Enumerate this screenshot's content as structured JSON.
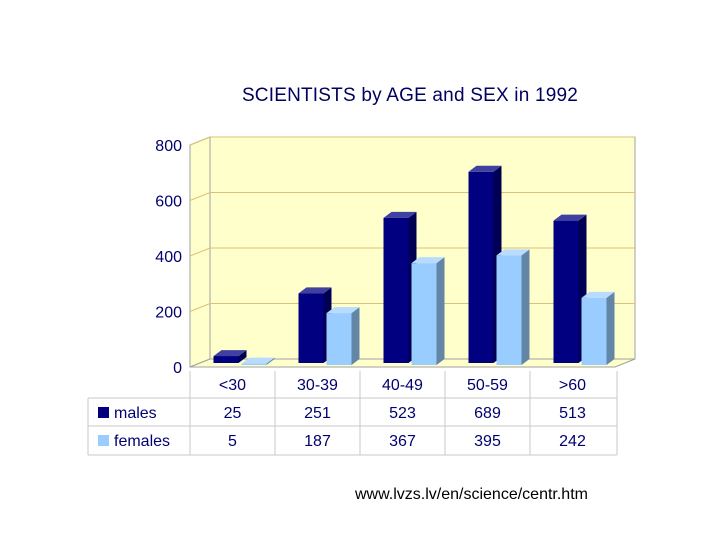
{
  "chart_data": {
    "type": "bar",
    "title": "SCIENTISTS by AGE and SEX in 1992",
    "xlabel": "",
    "ylabel": "",
    "ylim": [
      0,
      800
    ],
    "yticks": [
      "0",
      "200",
      "400",
      "600",
      "800"
    ],
    "categories": [
      "<30",
      "30-39",
      "40-49",
      "50-59",
      ">60"
    ],
    "series": [
      {
        "name": "males",
        "values": [
          25,
          251,
          523,
          689,
          513
        ],
        "color": "#000080"
      },
      {
        "name": "females",
        "values": [
          5,
          187,
          367,
          395,
          242
        ],
        "color": "#99ccff"
      }
    ],
    "data_table": true,
    "grid": true,
    "three_d": true,
    "plot_background": "#ffffcc",
    "gridline_color": "#d8c27a"
  },
  "source_note": "www.lvzs.lv/en/science/centr.htm"
}
